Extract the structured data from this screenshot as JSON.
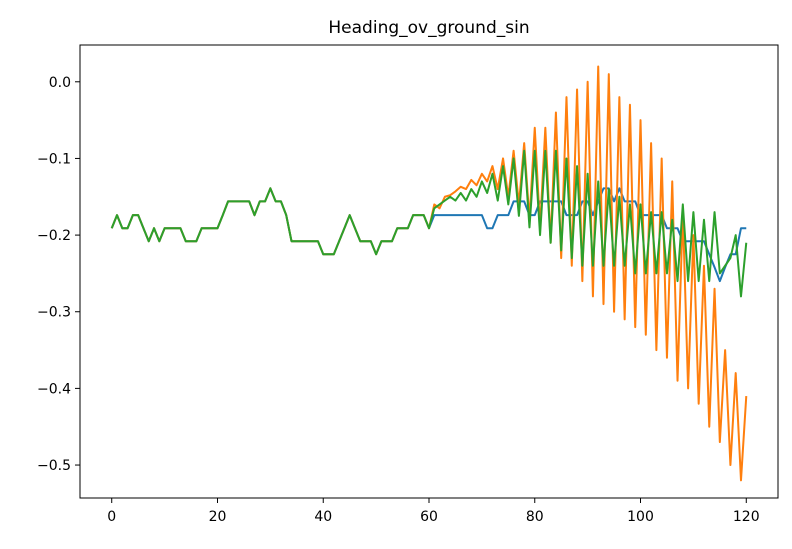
{
  "chart_data": {
    "type": "line",
    "title": "Heading_ov_ground_sin",
    "x": [
      0,
      1,
      2,
      3,
      4,
      5,
      6,
      7,
      8,
      9,
      10,
      11,
      12,
      13,
      14,
      15,
      16,
      17,
      18,
      19,
      20,
      21,
      22,
      23,
      24,
      25,
      26,
      27,
      28,
      29,
      30,
      31,
      32,
      33,
      34,
      35,
      36,
      37,
      38,
      39,
      40,
      41,
      42,
      43,
      44,
      45,
      46,
      47,
      48,
      49,
      50,
      51,
      52,
      53,
      54,
      55,
      56,
      57,
      58,
      59,
      60,
      61,
      62,
      63,
      64,
      65,
      66,
      67,
      68,
      69,
      70,
      71,
      72,
      73,
      74,
      75,
      76,
      77,
      78,
      79,
      80,
      81,
      82,
      83,
      84,
      85,
      86,
      87,
      88,
      89,
      90,
      91,
      92,
      93,
      94,
      95,
      96,
      97,
      98,
      99,
      100,
      101,
      102,
      103,
      104,
      105,
      106,
      107,
      108,
      109,
      110,
      111,
      112,
      113,
      114,
      115,
      116,
      117,
      118,
      119,
      120
    ],
    "series": [
      {
        "color": "#1f77b4",
        "values": [
          -0.191,
          -0.174,
          -0.191,
          -0.191,
          -0.174,
          -0.174,
          -0.191,
          -0.208,
          -0.191,
          -0.208,
          -0.191,
          -0.191,
          -0.191,
          -0.191,
          -0.208,
          -0.208,
          -0.208,
          -0.191,
          -0.191,
          -0.191,
          -0.191,
          -0.174,
          -0.156,
          -0.156,
          -0.156,
          -0.156,
          -0.156,
          -0.174,
          -0.156,
          -0.156,
          -0.139,
          -0.156,
          -0.156,
          -0.174,
          -0.208,
          -0.208,
          -0.208,
          -0.208,
          -0.208,
          -0.208,
          -0.225,
          -0.225,
          -0.225,
          -0.208,
          -0.191,
          -0.174,
          -0.191,
          -0.208,
          -0.208,
          -0.208,
          -0.225,
          -0.208,
          -0.208,
          -0.208,
          -0.191,
          -0.191,
          -0.191,
          -0.174,
          -0.174,
          -0.174,
          -0.191,
          -0.174,
          -0.174,
          -0.174,
          -0.174,
          -0.174,
          -0.174,
          -0.174,
          -0.174,
          -0.174,
          -0.174,
          -0.191,
          -0.191,
          -0.174,
          -0.174,
          -0.174,
          -0.156,
          -0.156,
          -0.156,
          -0.174,
          -0.174,
          -0.156,
          -0.156,
          -0.156,
          -0.156,
          -0.156,
          -0.174,
          -0.174,
          -0.174,
          -0.156,
          -0.156,
          -0.174,
          -0.156,
          -0.139,
          -0.139,
          -0.156,
          -0.139,
          -0.156,
          -0.156,
          -0.156,
          -0.174,
          -0.174,
          -0.174,
          -0.174,
          -0.174,
          -0.191,
          -0.191,
          -0.191,
          -0.208,
          -0.208,
          -0.208,
          -0.208,
          -0.208,
          -0.225,
          -0.242,
          -0.26,
          -0.242,
          -0.225,
          -0.225,
          -0.191,
          -0.191
        ]
      },
      {
        "color": "#ff7f0e",
        "values": [
          -0.191,
          -0.174,
          -0.191,
          -0.191,
          -0.174,
          -0.174,
          -0.191,
          -0.208,
          -0.191,
          -0.208,
          -0.191,
          -0.191,
          -0.191,
          -0.191,
          -0.208,
          -0.208,
          -0.208,
          -0.191,
          -0.191,
          -0.191,
          -0.191,
          -0.174,
          -0.156,
          -0.156,
          -0.156,
          -0.156,
          -0.156,
          -0.174,
          -0.156,
          -0.156,
          -0.139,
          -0.156,
          -0.156,
          -0.174,
          -0.208,
          -0.208,
          -0.208,
          -0.208,
          -0.208,
          -0.208,
          -0.225,
          -0.225,
          -0.225,
          -0.208,
          -0.191,
          -0.174,
          -0.191,
          -0.208,
          -0.208,
          -0.208,
          -0.225,
          -0.208,
          -0.208,
          -0.208,
          -0.191,
          -0.191,
          -0.191,
          -0.174,
          -0.174,
          -0.174,
          -0.191,
          -0.16,
          -0.165,
          -0.15,
          -0.148,
          -0.143,
          -0.137,
          -0.14,
          -0.128,
          -0.135,
          -0.12,
          -0.13,
          -0.11,
          -0.14,
          -0.1,
          -0.15,
          -0.09,
          -0.16,
          -0.08,
          -0.18,
          -0.06,
          -0.19,
          -0.06,
          -0.21,
          -0.04,
          -0.23,
          -0.02,
          -0.24,
          -0.01,
          -0.26,
          0.0,
          -0.28,
          0.02,
          -0.29,
          0.01,
          -0.3,
          -0.02,
          -0.31,
          -0.03,
          -0.32,
          -0.05,
          -0.33,
          -0.08,
          -0.35,
          -0.1,
          -0.36,
          -0.13,
          -0.39,
          -0.17,
          -0.4,
          -0.2,
          -0.42,
          -0.24,
          -0.45,
          -0.27,
          -0.47,
          -0.35,
          -0.5,
          -0.38,
          -0.52,
          -0.41
        ]
      },
      {
        "color": "#2ca02c",
        "values": [
          -0.191,
          -0.174,
          -0.191,
          -0.191,
          -0.174,
          -0.174,
          -0.191,
          -0.208,
          -0.191,
          -0.208,
          -0.191,
          -0.191,
          -0.191,
          -0.191,
          -0.208,
          -0.208,
          -0.208,
          -0.191,
          -0.191,
          -0.191,
          -0.191,
          -0.174,
          -0.156,
          -0.156,
          -0.156,
          -0.156,
          -0.156,
          -0.174,
          -0.156,
          -0.156,
          -0.139,
          -0.156,
          -0.156,
          -0.174,
          -0.208,
          -0.208,
          -0.208,
          -0.208,
          -0.208,
          -0.208,
          -0.225,
          -0.225,
          -0.225,
          -0.208,
          -0.191,
          -0.174,
          -0.191,
          -0.208,
          -0.208,
          -0.208,
          -0.225,
          -0.208,
          -0.208,
          -0.208,
          -0.191,
          -0.191,
          -0.191,
          -0.174,
          -0.174,
          -0.174,
          -0.191,
          -0.165,
          -0.16,
          -0.155,
          -0.15,
          -0.155,
          -0.145,
          -0.155,
          -0.14,
          -0.15,
          -0.13,
          -0.145,
          -0.12,
          -0.155,
          -0.11,
          -0.16,
          -0.1,
          -0.175,
          -0.09,
          -0.19,
          -0.09,
          -0.2,
          -0.09,
          -0.21,
          -0.09,
          -0.22,
          -0.1,
          -0.23,
          -0.11,
          -0.24,
          -0.12,
          -0.24,
          -0.13,
          -0.24,
          -0.14,
          -0.24,
          -0.15,
          -0.24,
          -0.16,
          -0.25,
          -0.16,
          -0.25,
          -0.17,
          -0.25,
          -0.17,
          -0.25,
          -0.18,
          -0.26,
          -0.16,
          -0.26,
          -0.17,
          -0.26,
          -0.18,
          -0.26,
          -0.17,
          -0.25,
          -0.24,
          -0.23,
          -0.2,
          -0.28,
          -0.21
        ]
      }
    ],
    "xlim": [
      -6,
      126
    ],
    "ylim": [
      -0.543,
      0.048
    ],
    "xticks": [
      0,
      20,
      40,
      60,
      80,
      100,
      120
    ],
    "yticks": [
      {
        "value": 0,
        "label": "0.0"
      },
      {
        "value": -0.1,
        "label": "−0.1"
      },
      {
        "value": -0.2,
        "label": "−0.2"
      },
      {
        "value": -0.3,
        "label": "−0.3"
      },
      {
        "value": -0.4,
        "label": "−0.4"
      },
      {
        "value": -0.5,
        "label": "−0.5"
      }
    ],
    "grid": false
  }
}
